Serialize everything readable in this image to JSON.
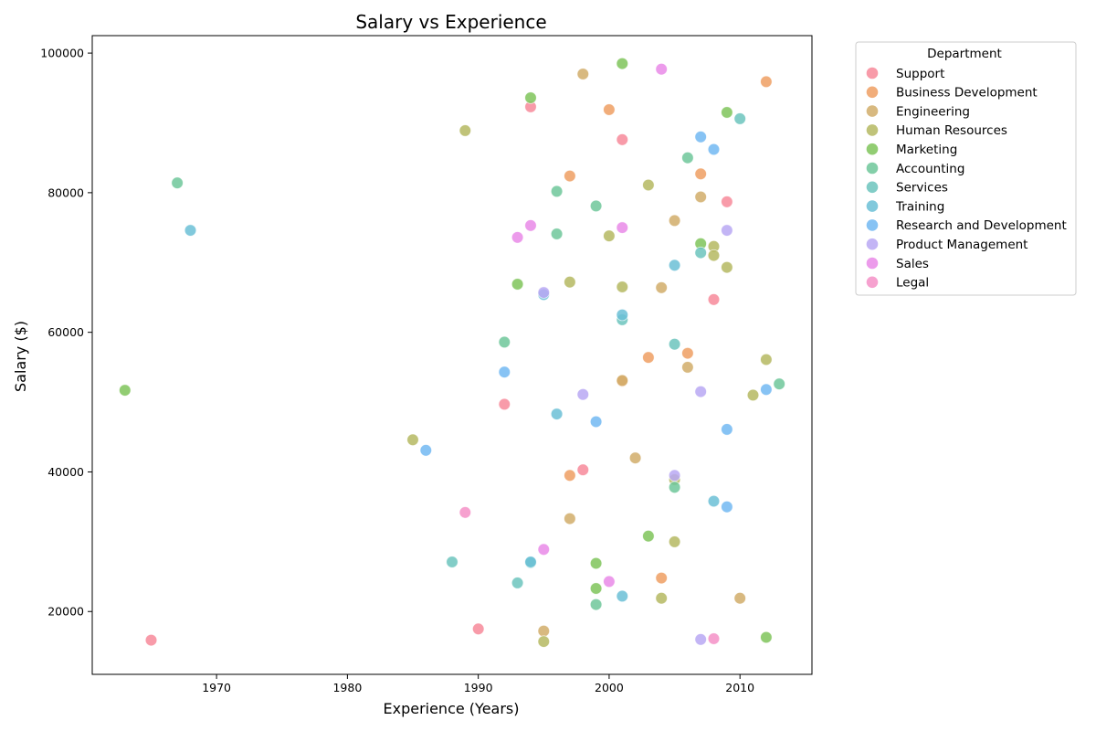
{
  "chart_data": {
    "type": "scatter",
    "title": "Salary vs Experience",
    "xlabel": "Experience (Years)",
    "ylabel": "Salary ($)",
    "xlim": [
      1960.5,
      2015.5
    ],
    "ylim": [
      11000,
      102500
    ],
    "xticks": [
      1970,
      1980,
      1990,
      2000,
      2010
    ],
    "yticks": [
      20000,
      40000,
      60000,
      80000,
      100000
    ],
    "grid": false,
    "legend": {
      "title": "Department",
      "placement": "outside-top-right"
    },
    "series": [
      {
        "name": "Support",
        "color": "#f78a9a",
        "points": [
          [
            1994,
            92300
          ],
          [
            2001,
            87600
          ],
          [
            2009,
            78700
          ],
          [
            2008,
            64700
          ],
          [
            1992,
            49700
          ],
          [
            1998,
            40300
          ],
          [
            1990,
            17500
          ],
          [
            1965,
            15900
          ]
        ]
      },
      {
        "name": "Business Development",
        "color": "#ee9f63",
        "points": [
          [
            2012,
            95900
          ],
          [
            2000,
            91900
          ],
          [
            1997,
            82400
          ],
          [
            2007,
            82700
          ],
          [
            2003,
            56400
          ],
          [
            2006,
            57000
          ],
          [
            2001,
            53000
          ],
          [
            1997,
            39500
          ],
          [
            2004,
            24800
          ]
        ]
      },
      {
        "name": "Engineering",
        "color": "#d1ad6a",
        "points": [
          [
            1998,
            97000
          ],
          [
            2007,
            79400
          ],
          [
            2005,
            76000
          ],
          [
            2004,
            66400
          ],
          [
            2001,
            53100
          ],
          [
            2006,
            55000
          ],
          [
            2002,
            42000
          ],
          [
            1997,
            33300
          ],
          [
            2010,
            21900
          ],
          [
            1995,
            17200
          ]
        ]
      },
      {
        "name": "Human Resources",
        "color": "#b5b862",
        "points": [
          [
            1989,
            88900
          ],
          [
            2003,
            81100
          ],
          [
            2000,
            73800
          ],
          [
            2008,
            72300
          ],
          [
            2008,
            71000
          ],
          [
            2009,
            69300
          ],
          [
            1997,
            67200
          ],
          [
            2001,
            66500
          ],
          [
            2012,
            56100
          ],
          [
            2011,
            51000
          ],
          [
            1985,
            44600
          ],
          [
            2005,
            38900
          ],
          [
            2005,
            30000
          ],
          [
            2004,
            21900
          ],
          [
            1995,
            15700
          ]
        ]
      },
      {
        "name": "Marketing",
        "color": "#7fc45a",
        "points": [
          [
            2001,
            98500
          ],
          [
            1994,
            93600
          ],
          [
            2009,
            91500
          ],
          [
            2007,
            72700
          ],
          [
            1993,
            66900
          ],
          [
            1963,
            51700
          ],
          [
            2003,
            30800
          ],
          [
            1999,
            26900
          ],
          [
            1999,
            23300
          ],
          [
            2012,
            16300
          ]
        ]
      },
      {
        "name": "Accounting",
        "color": "#6ec79a",
        "points": [
          [
            1967,
            81400
          ],
          [
            2006,
            85000
          ],
          [
            1996,
            80200
          ],
          [
            1999,
            78100
          ],
          [
            1996,
            74100
          ],
          [
            1992,
            58600
          ],
          [
            2013,
            52600
          ],
          [
            2005,
            37800
          ],
          [
            1999,
            21000
          ]
        ]
      },
      {
        "name": "Services",
        "color": "#6cc4bd",
        "points": [
          [
            2010,
            90600
          ],
          [
            2007,
            71400
          ],
          [
            2005,
            58300
          ],
          [
            2001,
            61800
          ],
          [
            1988,
            27100
          ],
          [
            1994,
            27000
          ],
          [
            1993,
            24100
          ]
        ]
      },
      {
        "name": "Training",
        "color": "#6bbfd6",
        "points": [
          [
            1968,
            74600
          ],
          [
            2005,
            69600
          ],
          [
            1995,
            65400
          ],
          [
            2001,
            62500
          ],
          [
            1996,
            48300
          ],
          [
            2008,
            35800
          ],
          [
            2001,
            22200
          ],
          [
            1994,
            27100
          ]
        ]
      },
      {
        "name": "Research and Development",
        "color": "#72b8f2",
        "points": [
          [
            2007,
            88000
          ],
          [
            2008,
            86200
          ],
          [
            1992,
            54300
          ],
          [
            2012,
            51800
          ],
          [
            1999,
            47200
          ],
          [
            2009,
            46100
          ],
          [
            1986,
            43100
          ],
          [
            2009,
            35000
          ]
        ]
      },
      {
        "name": "Product Management",
        "color": "#b8a8f3",
        "points": [
          [
            2009,
            74600
          ],
          [
            1995,
            65700
          ],
          [
            1998,
            51100
          ],
          [
            2007,
            51500
          ],
          [
            2005,
            39500
          ],
          [
            2007,
            16000
          ]
        ]
      },
      {
        "name": "Sales",
        "color": "#e98ae8",
        "points": [
          [
            2004,
            97700
          ],
          [
            1994,
            75300
          ],
          [
            2001,
            75000
          ],
          [
            1993,
            73600
          ],
          [
            1995,
            28900
          ],
          [
            2000,
            24300
          ]
        ]
      },
      {
        "name": "Legal",
        "color": "#f490c7",
        "points": [
          [
            1989,
            34200
          ],
          [
            2008,
            16100
          ]
        ]
      }
    ]
  }
}
